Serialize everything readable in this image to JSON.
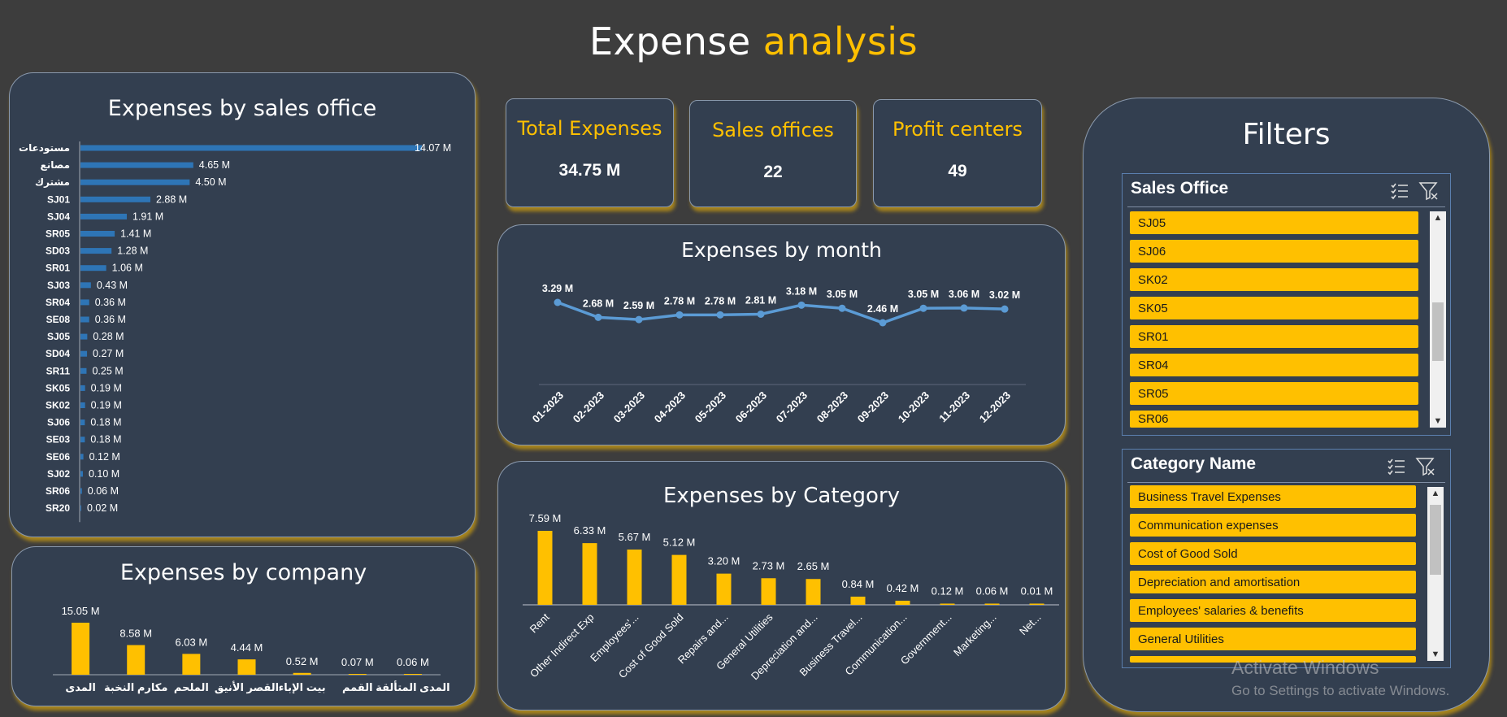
{
  "title": {
    "part1": "Expense",
    "part2": "analysis"
  },
  "colors": {
    "accent": "#ffc000",
    "panel": "#333f50",
    "bar_blue": "#2e75b6",
    "line": "#5b9bd5",
    "background": "#3d3d3d"
  },
  "kpis": [
    {
      "label": "Total Expenses",
      "value": "34.75 M"
    },
    {
      "label": "Sales offices",
      "value": "22"
    },
    {
      "label": "Profit centers",
      "value": "49"
    }
  ],
  "sales_office_chart": {
    "title": "Expenses by sales office",
    "chart_data": {
      "type": "bar",
      "orientation": "horizontal",
      "categories": [
        "مستودعات",
        "مصانع",
        "مشترك",
        "SJ01",
        "SJ04",
        "SR05",
        "SD03",
        "SR01",
        "SJ03",
        "SR04",
        "SE08",
        "SJ05",
        "SD04",
        "SR11",
        "SK05",
        "SK02",
        "SJ06",
        "SE03",
        "SE06",
        "SJ02",
        "SR06",
        "SR20"
      ],
      "values": [
        14.07,
        4.65,
        4.5,
        2.88,
        1.91,
        1.41,
        1.28,
        1.06,
        0.43,
        0.36,
        0.36,
        0.28,
        0.27,
        0.25,
        0.19,
        0.19,
        0.18,
        0.18,
        0.12,
        0.1,
        0.06,
        0.02
      ],
      "labels": [
        "14.07 M",
        "4.65 M",
        "4.50 M",
        "2.88 M",
        "1.91 M",
        "1.41 M",
        "1.28 M",
        "1.06 M",
        "0.43 M",
        "0.36 M",
        "0.36 M",
        "0.28 M",
        "0.27 M",
        "0.25 M",
        "0.19 M",
        "0.19 M",
        "0.18 M",
        "0.18 M",
        "0.12 M",
        "0.10 M",
        "0.06 M",
        "0.02 M"
      ]
    }
  },
  "company_chart": {
    "title": "Expenses by company",
    "chart_data": {
      "type": "bar",
      "categories": [
        "المدى",
        "مكارم النخبة",
        "الملحم",
        "القصر الأنيق",
        "بيت الإباء",
        "القمم",
        "المدى المتألقة"
      ],
      "values": [
        15.05,
        8.58,
        6.03,
        4.44,
        0.52,
        0.07,
        0.06
      ],
      "labels": [
        "15.05 M",
        "8.58 M",
        "6.03 M",
        "4.44 M",
        "0.52 M",
        "0.07 M",
        "0.06 M"
      ]
    }
  },
  "month_chart": {
    "title": "Expenses by month",
    "chart_data": {
      "type": "line",
      "categories": [
        "01-2023",
        "02-2023",
        "03-2023",
        "04-2023",
        "05-2023",
        "06-2023",
        "07-2023",
        "08-2023",
        "09-2023",
        "10-2023",
        "11-2023",
        "12-2023"
      ],
      "values": [
        3.29,
        2.68,
        2.59,
        2.78,
        2.78,
        2.81,
        3.18,
        3.05,
        2.46,
        3.05,
        3.06,
        3.02
      ],
      "labels": [
        "3.29 M",
        "2.68 M",
        "2.59 M",
        "2.78 M",
        "2.78 M",
        "2.81 M",
        "3.18 M",
        "3.05 M",
        "2.46 M",
        "3.05 M",
        "3.06 M",
        "3.02 M"
      ]
    }
  },
  "category_chart": {
    "title": "Expenses by Category",
    "chart_data": {
      "type": "bar",
      "categories": [
        "Rent",
        "Other Indirect Exp",
        "Employees'...",
        "Cost of Good Sold",
        "Repairs and...",
        "General Utilities",
        "Depreciation and...",
        "Business Travel...",
        "Communication...",
        "Government...",
        "Marketing...",
        "Net..."
      ],
      "values": [
        7.59,
        6.33,
        5.67,
        5.12,
        3.2,
        2.73,
        2.65,
        0.84,
        0.42,
        0.12,
        0.06,
        0.01
      ],
      "labels": [
        "7.59 M",
        "6.33 M",
        "5.67 M",
        "5.12 M",
        "3.20 M",
        "2.73 M",
        "2.65 M",
        "0.84 M",
        "0.42 M",
        "0.12 M",
        "0.06 M",
        "0.01 M"
      ]
    }
  },
  "filters": {
    "title": "Filters",
    "sales_office": {
      "header": "Sales Office",
      "items": [
        "SJ05",
        "SJ06",
        "SK02",
        "SK05",
        "SR01",
        "SR04",
        "SR05",
        "SR06"
      ]
    },
    "category": {
      "header": "Category Name",
      "items": [
        "Business Travel Expenses",
        "Communication expenses",
        "Cost of Good Sold",
        "Depreciation and amortisation",
        "Employees' salaries & benefits",
        "General Utilities",
        ""
      ]
    },
    "icons": {
      "multi_select": "multi-select-icon",
      "clear_filter": "clear-filter-icon"
    }
  },
  "watermark": {
    "line1": "Activate Windows",
    "line2": "Go to Settings to activate Windows."
  }
}
